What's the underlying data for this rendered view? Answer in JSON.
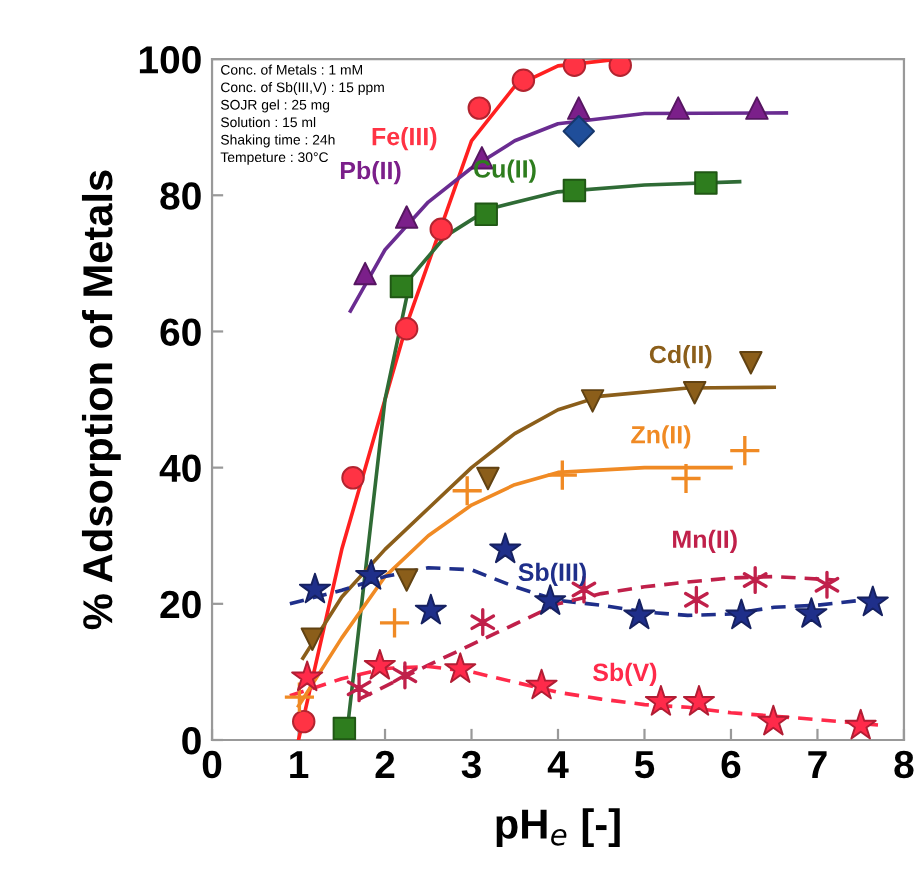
{
  "chart_data": {
    "type": "scatter",
    "xlabel": "pH$_{e}$ [-]",
    "ylabel": "% Adsorption of Metals",
    "xlim": [
      0,
      8
    ],
    "ylim": [
      0,
      100
    ],
    "xticks": [
      0,
      1,
      2,
      3,
      4,
      5,
      6,
      7,
      8
    ],
    "yticks": [
      0,
      20,
      40,
      60,
      80,
      100
    ],
    "grid": false,
    "legend": false,
    "annotations": [
      "Conc. of Metals : 1 mM",
      "Conc. of Sb(III,V) : 15 ppm",
      "SOJR gel : 25 mg",
      "Solution : 15 ml",
      "Shaking time : 24h",
      "Tempeture : 30°C"
    ],
    "series": [
      {
        "name": "Fe(III)",
        "color": "#ff3344",
        "marker": "circle",
        "x": [
          1.06,
          1.63,
          2.25,
          2.65,
          3.09,
          3.6,
          4.19,
          4.72
        ],
        "values": [
          2.7,
          38.5,
          60.4,
          75,
          92.8,
          96.9,
          99.1,
          99.1
        ]
      },
      {
        "name": "Pb(II)",
        "color": "#7b1f8a",
        "marker": "triangle",
        "x": [
          1.77,
          2.25,
          3.12,
          4.24,
          5.39,
          6.3
        ],
        "values": [
          68.5,
          76.8,
          85.5,
          92.8,
          92.8,
          92.8
        ]
      },
      {
        "name": "Cu(II)",
        "color": "#2e7d1e",
        "marker": "square",
        "x": [
          1.53,
          2.19,
          3.17,
          4.19,
          5.71
        ],
        "values": [
          1.7,
          66.6,
          77.2,
          80.7,
          81.8
        ]
      },
      {
        "name": "Cd(II)",
        "color": "#8b5e1a",
        "marker": "triangle_down",
        "x": [
          1.16,
          2.25,
          3.19,
          4.4,
          5.58,
          6.23
        ],
        "values": [
          14.8,
          23.5,
          38.4,
          49.8,
          51,
          55.4
        ]
      },
      {
        "name": "Zn(II)",
        "color": "#f08a24",
        "marker": "plus",
        "x": [
          1.01,
          2.11,
          2.95,
          4.05,
          5.48,
          6.16
        ],
        "values": [
          6.3,
          17.2,
          36.6,
          38.9,
          38.4,
          42.5
        ]
      },
      {
        "name": "Sb(III)",
        "color": "#1f2f8a",
        "marker": "star",
        "x": [
          1.19,
          1.84,
          2.53,
          3.39,
          3.91,
          4.94,
          6.12,
          6.93,
          7.64
        ],
        "values": [
          22.1,
          24.1,
          19,
          28,
          20.4,
          18.3,
          18.3,
          18.5,
          20.2
        ]
      },
      {
        "name": "Mn(II)",
        "color": "#c0204a",
        "marker": "cross",
        "x": [
          1.7,
          2.23,
          3.13,
          4.3,
          5.6,
          6.28,
          7.11
        ],
        "values": [
          7.6,
          9.5,
          17.3,
          22.1,
          20.6,
          23.5,
          22.8
        ]
      },
      {
        "name": "Sb(V)",
        "color": "#ff2a4a",
        "marker": "star",
        "x": [
          1.1,
          1.94,
          2.87,
          3.81,
          5.19,
          5.63,
          6.49,
          7.5
        ],
        "values": [
          9.2,
          10.9,
          10.4,
          8,
          5.6,
          5.6,
          2.7,
          2.1
        ]
      },
      {
        "color": "#1f4e9a",
        "marker": "diamond",
        "x": [
          4.24
        ],
        "values": [
          89.4
        ]
      },
      {
        "type": "line",
        "color": "#ff2020",
        "line_style": "solid",
        "x": [
          1.0,
          1.5,
          2.0,
          2.25,
          2.5,
          3.0,
          3.5,
          4.0,
          4.7
        ],
        "values": [
          0,
          28,
          50,
          61,
          70,
          88,
          96,
          99,
          100
        ]
      },
      {
        "type": "line",
        "color": "#6a2c91",
        "line_style": "solid",
        "x": [
          1.6,
          2.0,
          2.5,
          3.0,
          3.5,
          4.0,
          5.0,
          6.64
        ],
        "values": [
          63,
          72,
          79,
          84,
          88,
          90.5,
          92,
          92.1
        ]
      },
      {
        "type": "line",
        "color": "#2f6b35",
        "line_style": "solid",
        "x": [
          1.55,
          2.0,
          2.3,
          2.7,
          3.2,
          4.0,
          5.0,
          6.1
        ],
        "values": [
          0,
          50,
          68,
          74,
          78,
          80.5,
          81.5,
          82
        ]
      },
      {
        "type": "line",
        "color": "#8b5e1a",
        "line_style": "solid",
        "x": [
          1.05,
          1.5,
          2.0,
          2.5,
          3.0,
          3.5,
          4.0,
          4.5,
          5.5,
          6.5
        ],
        "values": [
          12,
          21,
          28,
          34,
          40,
          45,
          48.5,
          50.5,
          51.7,
          51.8
        ]
      },
      {
        "type": "line",
        "color": "#f08a24",
        "line_style": "solid",
        "x": [
          1.0,
          1.5,
          2.0,
          2.5,
          3.0,
          3.5,
          4.0,
          5.0,
          6.0
        ],
        "values": [
          5,
          15,
          24,
          30,
          34.5,
          37.5,
          39.3,
          40,
          40
        ]
      },
      {
        "type": "line",
        "color": "#1f2f8a",
        "line_style": "dashed",
        "x": [
          0.9,
          1.5,
          2.0,
          2.5,
          3.0,
          3.5,
          4.0,
          4.5,
          5.0,
          5.5,
          6.0,
          6.5,
          7.0,
          7.7
        ],
        "values": [
          20,
          22,
          24,
          25.3,
          25,
          22.5,
          20.5,
          19.8,
          18.8,
          18.3,
          18.5,
          19.5,
          19.8,
          20.8
        ]
      },
      {
        "type": "line",
        "color": "#c0204a",
        "line_style": "dashed",
        "x": [
          1.7,
          2.5,
          3.0,
          3.5,
          4.0,
          4.5,
          5.0,
          5.5,
          6.0,
          6.5,
          7.2
        ],
        "values": [
          6,
          11,
          14,
          17,
          20,
          21.5,
          22.5,
          23.2,
          23.8,
          24,
          23.5
        ]
      },
      {
        "type": "line",
        "color": "#ff2a4a",
        "line_style": "dashed",
        "x": [
          0.9,
          1.5,
          2.0,
          2.5,
          3.0,
          3.5,
          4.0,
          4.5,
          5.0,
          5.5,
          6.0,
          7.0,
          7.7
        ],
        "values": [
          6.5,
          9,
          10.5,
          10.8,
          10,
          8.5,
          7,
          6,
          5.2,
          4.8,
          4,
          3,
          2.2
        ]
      }
    ]
  }
}
